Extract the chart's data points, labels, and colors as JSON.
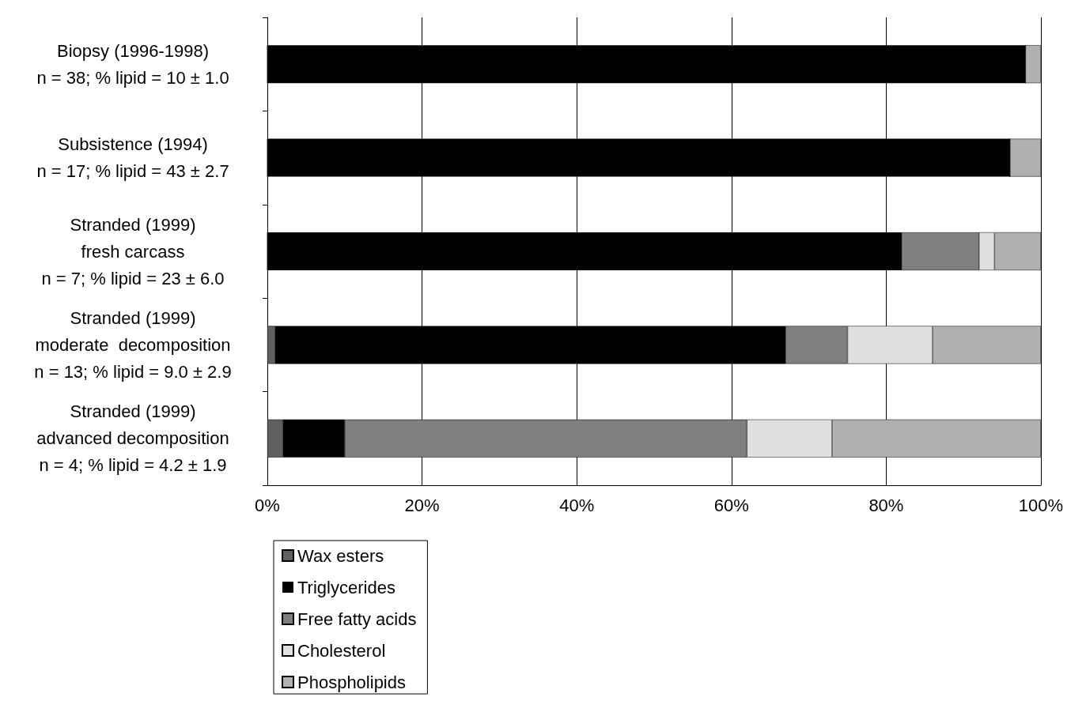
{
  "chart_data": {
    "type": "bar",
    "orientation": "horizontal",
    "stacked": true,
    "categories": [
      "Biopsy (1996-1998)\nn = 38; % lipid = 10 ± 1.0",
      "Subsistence (1994)\nn = 17; % lipid = 43 ± 2.7",
      "Stranded (1999)\nfresh carcass\nn = 7; % lipid = 23 ± 6.0",
      "Stranded (1999)\nmoderate  decomposition\nn = 13; % lipid = 9.0 ± 2.9",
      "Stranded (1999)\nadvanced decomposition\nn = 4; % lipid = 4.2 ± 1.9"
    ],
    "series": [
      {
        "name": "Wax esters",
        "color": "#606060",
        "values": [
          0,
          0,
          0,
          1,
          2
        ]
      },
      {
        "name": "Triglycerides",
        "color": "#000000",
        "values": [
          98,
          96,
          82,
          66,
          8
        ]
      },
      {
        "name": "Free fatty acids",
        "color": "#7f7f7f",
        "values": [
          0,
          0,
          10,
          8,
          52
        ]
      },
      {
        "name": "Cholesterol",
        "color": "#e0e0e0",
        "values": [
          0,
          0,
          2,
          11,
          11
        ]
      },
      {
        "name": "Phospholipids",
        "color": "#b0b0b0",
        "values": [
          2,
          4,
          6,
          14,
          27
        ]
      }
    ],
    "xlim": [
      0,
      100
    ],
    "xticks": [
      {
        "value": 0,
        "label": "0%"
      },
      {
        "value": 20,
        "label": "20%"
      },
      {
        "value": 40,
        "label": "40%"
      },
      {
        "value": 60,
        "label": "60%"
      },
      {
        "value": 80,
        "label": "80%"
      },
      {
        "value": 100,
        "label": "100%"
      }
    ],
    "grid": "x",
    "legend": "bottom left"
  }
}
